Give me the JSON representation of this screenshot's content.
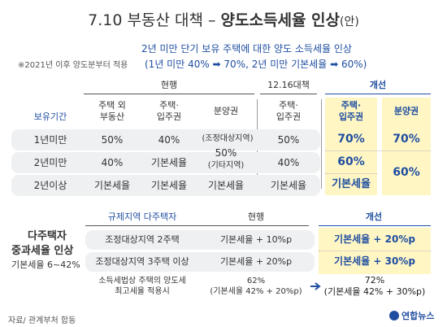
{
  "title": {
    "main": "7.10 부동산 대책 – ",
    "bold": "양도소득세율 인상",
    "suffix": "(안)"
  },
  "subtitle": {
    "line1": "2년 미만 단기 보유 주택에 대한 양도 소득세율 인상",
    "line2": "(1년 미만 40% ➡ 70%, 2년 미만 기본세율 ➡ 60%)"
  },
  "note": "※2021년 이후 양도분부터 적용",
  "table1": {
    "group_current": "현행",
    "group_1216": "12.16대책",
    "group_reform": "개선",
    "row_header": "보유기간",
    "col_cur1": "주택 외\n부동산",
    "col_cur2": "주택·\n입주권",
    "col_cur3": "분양권",
    "col_1216": "주택·\n입주권",
    "col_new1": "주택·\n입주권",
    "col_new2": "분양권",
    "rows": [
      {
        "period": "1년미만",
        "c1": "50%",
        "c2": "40%",
        "c4": "50%",
        "n1": "70%",
        "n2": "70%"
      },
      {
        "period": "2년미만",
        "c1": "40%",
        "c2": "기본세율",
        "c4": "40%",
        "n1": "60%"
      },
      {
        "period": "2년이상",
        "c1": "기본세율",
        "c2": "기본세율",
        "c4": "기본세율",
        "n1": "기본세율"
      }
    ],
    "bunyang_1": "(조정대상지역)",
    "bunyang_2": "50%",
    "bunyang_3": "(기타지역)",
    "bunyang_4": "기본세율",
    "new2_merged": "60%"
  },
  "table2": {
    "side_title_1": "다주택자",
    "side_title_2": "중과세율 인상",
    "side_sub": "기본세율 6~42%",
    "h1": "규제지역 다주택자",
    "h2": "현행",
    "h3": "개선",
    "rows": [
      {
        "a": "조정대상지역 2주택",
        "b": "기본세율 + 10%p",
        "c": "기본세율 + 20%p"
      },
      {
        "a": "조정대상지역 3주택 이상",
        "b": "기본세율 + 20%p",
        "c": "기본세율 + 30%p"
      }
    ],
    "last_a1": "소득세법상 주택의 양도세",
    "last_a2": "최고세율 적용시",
    "last_b1": "62%",
    "last_b2": "(기본세율 42% + 20%p)",
    "last_c1": "72%",
    "last_c2": "(기본세율 42% + 30%p)"
  },
  "source": "자료/ 관계부처 합동",
  "logo": "연합뉴스",
  "colors": {
    "blue": "#1f4ea0",
    "yellow": "#fff6c4",
    "rowbg": "#eef0f2"
  }
}
